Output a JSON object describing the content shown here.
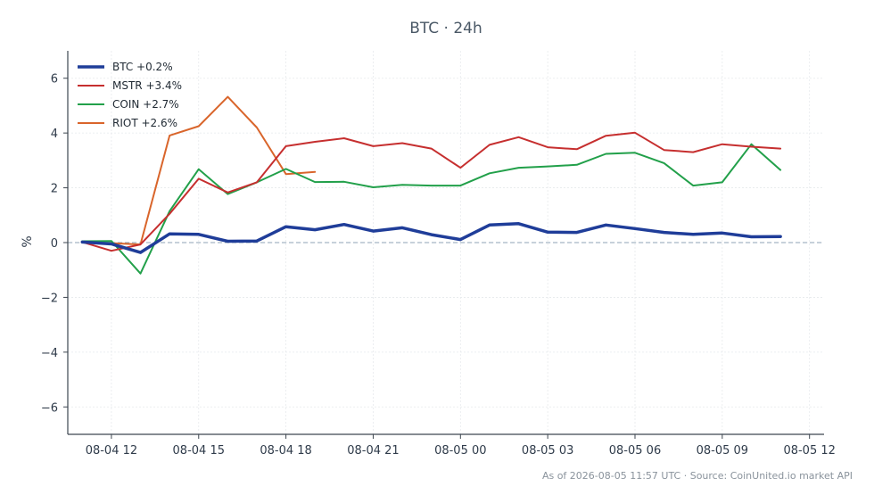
{
  "chart_data": {
    "type": "line",
    "title": "BTC · 24h",
    "xlabel": "",
    "ylabel": "%",
    "xlim": [
      "2026-08-04 10:30",
      "2026-08-05 12:30"
    ],
    "ylim": [
      -7,
      7
    ],
    "yticks": [
      -6,
      -4,
      -2,
      0,
      2,
      4,
      6
    ],
    "ytick_labels": [
      "−6",
      "−4",
      "−2",
      "0",
      "2",
      "4",
      "6"
    ],
    "xticks": [
      "2026-08-04 12:00",
      "2026-08-04 15:00",
      "2026-08-04 18:00",
      "2026-08-04 21:00",
      "2026-08-05 00:00",
      "2026-08-05 03:00",
      "2026-08-05 06:00",
      "2026-08-05 09:00",
      "2026-08-05 12:00"
    ],
    "xtick_labels": [
      "08-04 12",
      "08-04 15",
      "08-04 18",
      "08-04 21",
      "08-05 00",
      "08-05 03",
      "08-05 06",
      "08-05 09",
      "08-05 12"
    ],
    "grid": true,
    "legend_position": "top-left",
    "reference_line": {
      "y": 0,
      "style": "dashed",
      "color": "#8fa3b5"
    },
    "series": [
      {
        "name": "BTC +0.2%",
        "color": "#1f3d99",
        "emphasis": "bold",
        "x": [
          "2026-08-04 11:00",
          "2026-08-04 12:00",
          "2026-08-04 13:00",
          "2026-08-04 14:00",
          "2026-08-04 15:00",
          "2026-08-04 16:00",
          "2026-08-04 17:00",
          "2026-08-04 18:00",
          "2026-08-04 19:00",
          "2026-08-04 20:00",
          "2026-08-04 21:00",
          "2026-08-04 22:00",
          "2026-08-04 23:00",
          "2026-08-05 00:00",
          "2026-08-05 01:00",
          "2026-08-05 02:00",
          "2026-08-05 03:00",
          "2026-08-05 04:00",
          "2026-08-05 05:00",
          "2026-08-05 06:00",
          "2026-08-05 07:00",
          "2026-08-05 08:00",
          "2026-08-05 09:00",
          "2026-08-05 10:00",
          "2026-08-05 11:00"
        ],
        "y": [
          0.02,
          -0.05,
          -0.36,
          0.32,
          0.3,
          0.05,
          0.06,
          0.58,
          0.47,
          0.66,
          0.42,
          0.54,
          0.29,
          0.11,
          0.64,
          0.69,
          0.38,
          0.37,
          0.64,
          0.51,
          0.37,
          0.3,
          0.35,
          0.21,
          0.22
        ]
      },
      {
        "name": "MSTR +3.4%",
        "color": "#c62f2f",
        "x": [
          "2026-08-04 11:00",
          "2026-08-04 12:00",
          "2026-08-04 13:00",
          "2026-08-04 14:00",
          "2026-08-04 15:00",
          "2026-08-04 16:00",
          "2026-08-04 17:00",
          "2026-08-04 18:00",
          "2026-08-04 19:00",
          "2026-08-04 20:00",
          "2026-08-04 21:00",
          "2026-08-04 22:00",
          "2026-08-04 23:00",
          "2026-08-05 00:00",
          "2026-08-05 01:00",
          "2026-08-05 02:00",
          "2026-08-05 03:00",
          "2026-08-05 04:00",
          "2026-08-05 05:00",
          "2026-08-05 06:00",
          "2026-08-05 07:00",
          "2026-08-05 08:00",
          "2026-08-05 09:00",
          "2026-08-05 10:00",
          "2026-08-05 11:00"
        ],
        "y": [
          0.02,
          -0.3,
          -0.07,
          1.05,
          2.33,
          1.83,
          2.2,
          3.52,
          3.68,
          3.81,
          3.52,
          3.63,
          3.43,
          2.73,
          3.57,
          3.85,
          3.48,
          3.41,
          3.9,
          4.01,
          3.38,
          3.3,
          3.59,
          3.5,
          3.43
        ]
      },
      {
        "name": "COIN +2.7%",
        "color": "#22a04a",
        "x": [
          "2026-08-04 11:00",
          "2026-08-04 12:00",
          "2026-08-04 13:00",
          "2026-08-04 14:00",
          "2026-08-04 15:00",
          "2026-08-04 16:00",
          "2026-08-04 17:00",
          "2026-08-04 18:00",
          "2026-08-04 19:00",
          "2026-08-04 20:00",
          "2026-08-04 21:00",
          "2026-08-04 22:00",
          "2026-08-04 23:00",
          "2026-08-05 00:00",
          "2026-08-05 01:00",
          "2026-08-05 02:00",
          "2026-08-05 03:00",
          "2026-08-05 04:00",
          "2026-08-05 05:00",
          "2026-08-05 06:00",
          "2026-08-05 07:00",
          "2026-08-05 08:00",
          "2026-08-05 09:00",
          "2026-08-05 10:00",
          "2026-08-05 11:00"
        ],
        "y": [
          0.05,
          0.06,
          -1.13,
          1.15,
          2.68,
          1.77,
          2.2,
          2.69,
          2.21,
          2.22,
          2.02,
          2.11,
          2.08,
          2.08,
          2.53,
          2.73,
          2.78,
          2.84,
          3.24,
          3.28,
          2.9,
          2.08,
          2.2,
          3.59,
          2.65
        ]
      },
      {
        "name": "RIOT +2.6%",
        "color": "#d9652b",
        "x": [
          "2026-08-04 11:00",
          "2026-08-04 12:00",
          "2026-08-04 13:00",
          "2026-08-04 14:00",
          "2026-08-04 15:00",
          "2026-08-04 16:00",
          "2026-08-04 17:00",
          "2026-08-04 18:00",
          "2026-08-04 19:00"
        ],
        "y": [
          0.02,
          -0.02,
          -0.07,
          3.91,
          4.25,
          5.32,
          4.2,
          2.5,
          2.58
        ]
      }
    ]
  },
  "footer": {
    "note": "As of 2026-08-05 11:57 UTC · Source: CoinUnited.io market API"
  }
}
